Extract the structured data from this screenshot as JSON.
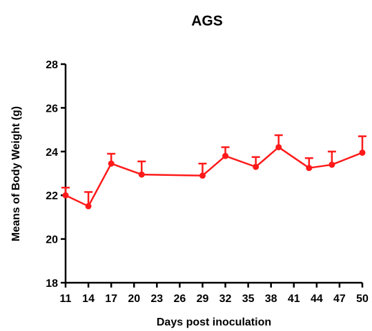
{
  "chart_data": {
    "type": "line",
    "title": "AGS",
    "xlabel": "Days post inoculation",
    "ylabel": "Means of Body Weight (g)",
    "xlim": [
      11,
      50
    ],
    "ylim": [
      18,
      28
    ],
    "xticks": [
      11,
      14,
      17,
      20,
      23,
      26,
      29,
      32,
      35,
      38,
      41,
      44,
      47,
      50
    ],
    "yticks": [
      18,
      20,
      22,
      24,
      26,
      28
    ],
    "grid": false,
    "color": "#ff1a1a",
    "series": [
      {
        "x": [
          11,
          14,
          17,
          21,
          29,
          32,
          36,
          39,
          43,
          46,
          50
        ],
        "values": [
          22.0,
          21.5,
          23.45,
          22.95,
          22.9,
          23.8,
          23.3,
          24.2,
          23.25,
          23.4,
          23.95
        ],
        "error_upper": [
          0.35,
          0.65,
          0.45,
          0.6,
          0.55,
          0.4,
          0.45,
          0.55,
          0.45,
          0.6,
          0.75
        ]
      }
    ]
  }
}
